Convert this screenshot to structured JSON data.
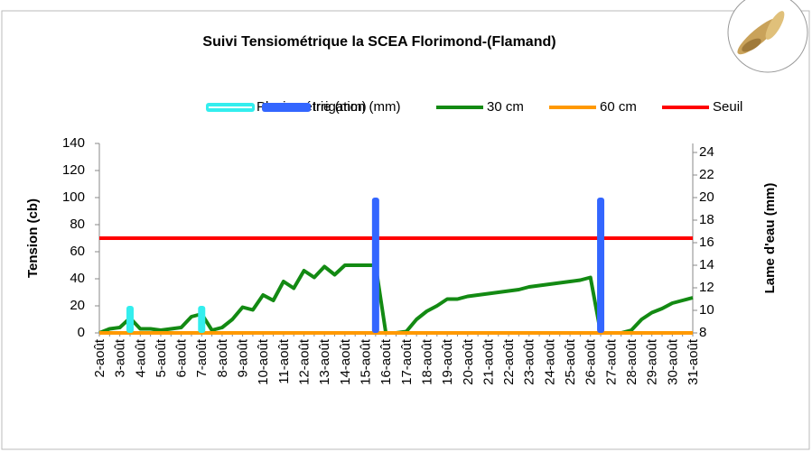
{
  "chart_data": {
    "type": "line",
    "title": "Suivi Tensiométrique la SCEA Florimond-(Flamand)",
    "ylabel": "Tension (cb)",
    "y2label": "Lame d'eau (mm)",
    "categories": [
      "2-août",
      null,
      "3-août",
      null,
      "4-août",
      null,
      "5-août",
      null,
      "6-août",
      null,
      "7-août",
      null,
      "8-août",
      null,
      "9-août",
      null,
      "10-août",
      null,
      "11-août",
      null,
      "12-août",
      null,
      "13-août",
      null,
      "14-août",
      null,
      "15-août",
      null,
      "16-août",
      null,
      "17-août",
      null,
      "18-août",
      null,
      "19-août",
      null,
      "20-août",
      null,
      "21-août",
      null,
      "22-août",
      null,
      "23-août",
      null,
      "24-août",
      null,
      "25-août",
      null,
      "26-août",
      null,
      "27-août",
      null,
      "28-août",
      null,
      "29-août",
      null,
      "30-août",
      null,
      "31-août"
    ],
    "series": [
      {
        "name": "Pluviométrie (mm)",
        "color": "#33eeee",
        "type": "bar",
        "axis": "y2",
        "values": [
          null,
          null,
          null,
          10.4,
          null,
          null,
          null,
          null,
          null,
          null,
          10.4,
          null,
          null,
          null,
          null,
          null,
          null,
          null,
          null,
          null,
          null,
          null,
          null,
          null,
          null,
          null,
          null,
          null,
          null,
          null,
          null,
          null,
          null,
          null,
          null,
          null,
          null,
          null,
          null,
          null,
          null,
          null,
          null,
          null,
          null,
          null,
          null,
          null,
          null,
          null,
          null,
          null,
          null,
          null,
          null,
          null,
          null,
          null,
          null
        ]
      },
      {
        "name": "Irrigation (mm)",
        "color": "#3366ff",
        "type": "bar",
        "axis": "y2",
        "values": [
          null,
          null,
          null,
          null,
          null,
          null,
          null,
          null,
          null,
          null,
          null,
          null,
          null,
          null,
          null,
          null,
          null,
          null,
          null,
          null,
          null,
          null,
          null,
          null,
          null,
          null,
          null,
          20,
          null,
          null,
          null,
          null,
          null,
          null,
          null,
          null,
          null,
          null,
          null,
          null,
          null,
          null,
          null,
          null,
          null,
          null,
          null,
          null,
          null,
          20,
          null,
          null,
          null,
          null,
          null,
          null,
          null,
          null,
          null
        ]
      },
      {
        "name": "30 cm",
        "color": "#138a13",
        "type": "line",
        "values": [
          0,
          3,
          4,
          11,
          3,
          3,
          2,
          3,
          4,
          12,
          14,
          2,
          4,
          10,
          19,
          17,
          28,
          24,
          38,
          33,
          46,
          41,
          49,
          43,
          50,
          50,
          50,
          50,
          0,
          0,
          1,
          10,
          16,
          20,
          25,
          25,
          27,
          28,
          29,
          30,
          31,
          32,
          34,
          35,
          36,
          37,
          38,
          39,
          41,
          0,
          0,
          0,
          2,
          10,
          15,
          18,
          22,
          24,
          26
        ]
      },
      {
        "name": "60 cm",
        "color": "#ff9900",
        "type": "line",
        "values": [
          0,
          0,
          0,
          0,
          0,
          0,
          0,
          0,
          0,
          0,
          0,
          0,
          0,
          0,
          0,
          0,
          0,
          0,
          0,
          0,
          0,
          0,
          0,
          0,
          0,
          0,
          0,
          0,
          0,
          0,
          0,
          0,
          0,
          0,
          0,
          0,
          0,
          0,
          0,
          0,
          0,
          0,
          0,
          0,
          0,
          0,
          0,
          0,
          0,
          0,
          0,
          0,
          0,
          0,
          0,
          0,
          0,
          0,
          0
        ]
      },
      {
        "name": "Seuil",
        "color": "#ff0000",
        "type": "line",
        "values": [
          70,
          70,
          70,
          70,
          70,
          70,
          70,
          70,
          70,
          70,
          70,
          70,
          70,
          70,
          70,
          70,
          70,
          70,
          70,
          70,
          70,
          70,
          70,
          70,
          70,
          70,
          70,
          70,
          70,
          70,
          70,
          70,
          70,
          70,
          70,
          70,
          70,
          70,
          70,
          70,
          70,
          70,
          70,
          70,
          70,
          70,
          70,
          70,
          70,
          70,
          70,
          70,
          70,
          70,
          70,
          70,
          70,
          70,
          70
        ]
      }
    ],
    "ylim": [
      0,
      140
    ],
    "yticks": [
      0,
      20,
      40,
      60,
      80,
      100,
      120,
      140
    ],
    "y2lim": [
      8,
      24.8
    ],
    "y2ticks": [
      8,
      10,
      12,
      14,
      16,
      18,
      20,
      22,
      24
    ],
    "grid": false
  }
}
